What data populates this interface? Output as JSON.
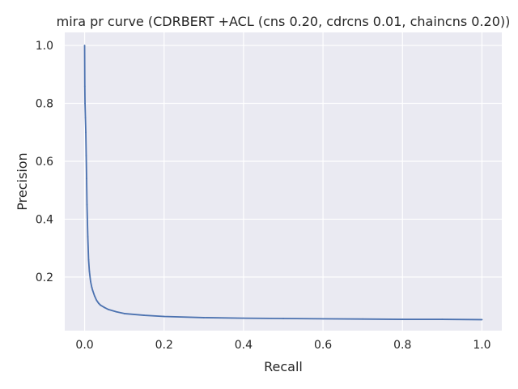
{
  "chart_data": {
    "type": "line",
    "title": "mira pr curve (CDRBERT +ACL (cns 0.20, cdrcns 0.01, chaincns 0.20))",
    "xlabel": "Recall",
    "ylabel": "Precision",
    "xlim": [
      -0.05,
      1.05
    ],
    "ylim": [
      0.015,
      1.045
    ],
    "xticks": [
      0.0,
      0.2,
      0.4,
      0.6,
      0.8,
      1.0
    ],
    "xtick_labels": [
      "0.0",
      "0.2",
      "0.4",
      "0.6",
      "0.8",
      "1.0"
    ],
    "yticks": [
      0.2,
      0.4,
      0.6,
      0.8,
      1.0
    ],
    "ytick_labels": [
      "0.2",
      "0.4",
      "0.6",
      "0.8",
      "1.0"
    ],
    "grid": true,
    "series": [
      {
        "color": "#4c72b0",
        "x": [
          0.0,
          0.0005,
          0.001,
          0.002,
          0.003,
          0.004,
          0.005,
          0.006,
          0.008,
          0.01,
          0.012,
          0.015,
          0.018,
          0.02,
          0.025,
          0.03,
          0.035,
          0.04,
          0.05,
          0.06,
          0.08,
          0.1,
          0.15,
          0.2,
          0.3,
          0.4,
          0.5,
          0.6,
          0.7,
          0.8,
          0.9,
          1.0
        ],
        "y": [
          1.0,
          0.86,
          0.8,
          0.75,
          0.7,
          0.62,
          0.54,
          0.45,
          0.34,
          0.26,
          0.22,
          0.185,
          0.165,
          0.155,
          0.135,
          0.12,
          0.11,
          0.103,
          0.095,
          0.088,
          0.08,
          0.074,
          0.068,
          0.064,
          0.06,
          0.058,
          0.057,
          0.056,
          0.055,
          0.054,
          0.054,
          0.053
        ]
      }
    ]
  }
}
